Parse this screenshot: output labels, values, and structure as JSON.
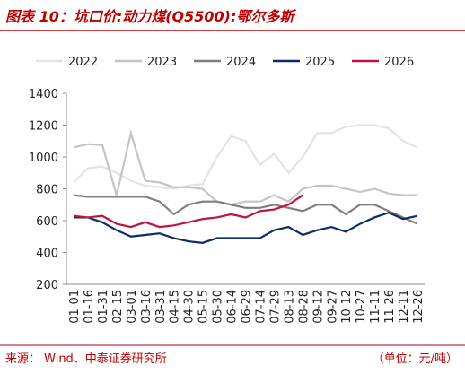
{
  "chart_data": {
    "type": "line",
    "title": "图表 10：坑口价:动力煤(Q5500):鄂尔多斯",
    "source": "来源：  Wind、中泰证券研究所",
    "unit": "（单位：元/吨）",
    "categories": [
      "01-01",
      "01-16",
      "01-31",
      "02-15",
      "03-01",
      "03-16",
      "03-31",
      "04-15",
      "04-30",
      "05-15",
      "05-30",
      "06-14",
      "06-29",
      "07-14",
      "07-29",
      "08-13",
      "08-28",
      "09-12",
      "09-27",
      "10-12",
      "10-27",
      "11-11",
      "11-26",
      "12-11",
      "12-26"
    ],
    "ylim": [
      200,
      1400
    ],
    "yticks": [
      200,
      400,
      600,
      800,
      1000,
      1200,
      1400
    ],
    "series": [
      {
        "name": "2022",
        "color": "#e3e3e3",
        "values": [
          840,
          930,
          940,
          900,
          850,
          820,
          810,
          800,
          820,
          830,
          1000,
          1130,
          1100,
          950,
          1020,
          900,
          1000,
          1150,
          1150,
          1190,
          1200,
          1200,
          1180,
          1100,
          1060
        ]
      },
      {
        "name": "2023",
        "color": "#c4c4c4",
        "values": [
          1060,
          1080,
          1075,
          760,
          1150,
          850,
          840,
          810,
          810,
          800,
          720,
          700,
          720,
          720,
          760,
          720,
          800,
          820,
          820,
          800,
          780,
          800,
          770,
          760,
          760
        ]
      },
      {
        "name": "2024",
        "color": "#7f7f7f",
        "values": [
          760,
          750,
          750,
          750,
          750,
          750,
          720,
          640,
          700,
          720,
          720,
          700,
          680,
          680,
          700,
          680,
          660,
          700,
          700,
          640,
          700,
          700,
          660,
          620,
          580
        ]
      },
      {
        "name": "2025",
        "color": "#0d2a6b",
        "values": [
          620,
          620,
          590,
          540,
          500,
          510,
          520,
          490,
          470,
          460,
          490,
          490,
          490,
          490,
          540,
          560,
          510,
          540,
          560,
          530,
          580,
          620,
          650,
          610,
          630
        ]
      },
      {
        "name": "2026",
        "color": "#c0143c",
        "values": [
          630,
          620,
          630,
          580,
          560,
          590,
          560,
          570,
          590,
          610,
          620,
          640,
          620,
          660,
          670,
          700,
          760,
          null,
          null,
          null,
          null,
          null,
          null,
          null,
          null
        ]
      }
    ]
  }
}
